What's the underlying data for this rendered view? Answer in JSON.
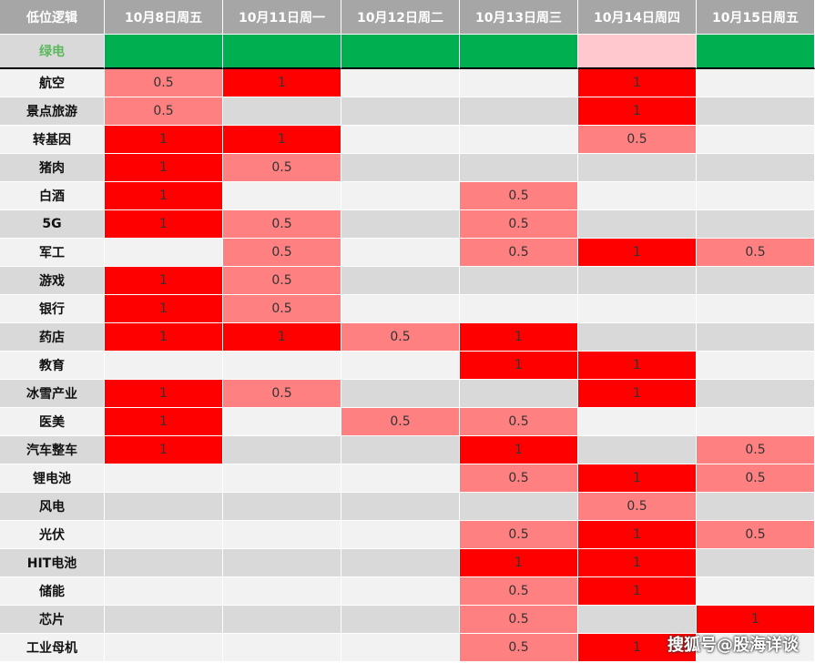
{
  "table": {
    "header": [
      "低位逻辑",
      "10月8日周五",
      "10月11日周一",
      "10月12日周二",
      "10月13日周三",
      "10月14日周四",
      "10月15日周五"
    ],
    "green_row": {
      "label": "绿电",
      "colors": [
        "#00b050",
        "#00b050",
        "#00b050",
        "#00b050",
        "#ffc7ce",
        "#00b050"
      ]
    },
    "value_colors": {
      "1": "#ff0000",
      "0.5": "#ff8080"
    },
    "rows": [
      [
        "航空",
        0.5,
        1,
        null,
        null,
        1,
        null
      ],
      [
        "景点旅游",
        0.5,
        null,
        null,
        null,
        1,
        null
      ],
      [
        "转基因",
        1,
        1,
        null,
        null,
        0.5,
        null
      ],
      [
        "猪肉",
        1,
        0.5,
        null,
        null,
        null,
        null
      ],
      [
        "白酒",
        1,
        null,
        null,
        0.5,
        null,
        null
      ],
      [
        "5G",
        1,
        0.5,
        null,
        0.5,
        null,
        null
      ],
      [
        "军工",
        null,
        0.5,
        null,
        0.5,
        1,
        0.5
      ],
      [
        "游戏",
        1,
        0.5,
        null,
        null,
        null,
        null
      ],
      [
        "银行",
        1,
        0.5,
        null,
        null,
        null,
        null
      ],
      [
        "药店",
        1,
        1,
        0.5,
        1,
        null,
        null
      ],
      [
        "教育",
        null,
        null,
        null,
        1,
        1,
        null
      ],
      [
        "冰雪产业",
        1,
        0.5,
        null,
        null,
        1,
        null
      ],
      [
        "医美",
        1,
        null,
        0.5,
        0.5,
        null,
        null
      ],
      [
        "汽车整车",
        1,
        null,
        null,
        1,
        null,
        0.5
      ],
      [
        "锂电池",
        null,
        null,
        null,
        0.5,
        1,
        0.5
      ],
      [
        "风电",
        null,
        null,
        null,
        null,
        0.5,
        null
      ],
      [
        "光伏",
        null,
        null,
        null,
        0.5,
        1,
        0.5
      ],
      [
        "HIT电池",
        null,
        null,
        null,
        1,
        1,
        null
      ],
      [
        "储能",
        null,
        null,
        null,
        0.5,
        1,
        null
      ],
      [
        "芯片",
        null,
        null,
        null,
        0.5,
        null,
        1
      ],
      [
        "工业母机",
        null,
        null,
        null,
        0.5,
        1,
        null
      ]
    ]
  },
  "watermark": "搜狐号@股海详谈"
}
